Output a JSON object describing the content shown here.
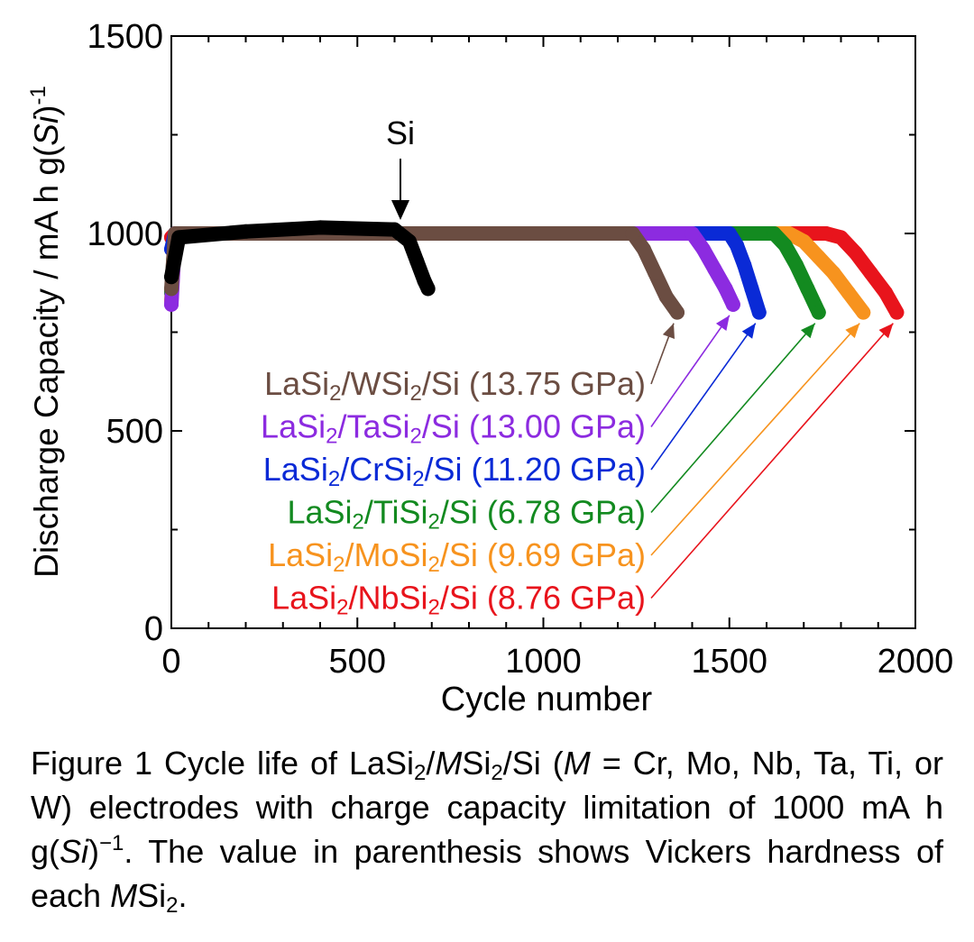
{
  "chart_data": {
    "type": "scatter",
    "title": "",
    "xlabel": "Cycle number",
    "ylabel_parts": {
      "main": "Discharge Capacity / mA h g(",
      "italic": "Si",
      "close": ")",
      "sup": "-1"
    },
    "xlim": [
      0,
      2000
    ],
    "ylim": [
      0,
      1500
    ],
    "xticks": [
      0,
      500,
      1000,
      1500,
      2000
    ],
    "yticks": [
      0,
      500,
      1000,
      1500
    ],
    "xtick_labels": [
      "0",
      "500",
      "1000",
      "1500",
      "2000"
    ],
    "ytick_labels": [
      "0",
      "500",
      "1000",
      "1500"
    ],
    "annotation_si": {
      "label": "Si",
      "x": 610,
      "y": 1010
    },
    "series": [
      {
        "name": "LaSi2/NbSi2/Si",
        "parts": [
          "LaSi",
          "2",
          "/NbSi",
          "2",
          "/Si (8.76 GPa)"
        ],
        "color": "#e8141c",
        "points": [
          [
            0,
            990
          ],
          [
            10,
            1000
          ],
          [
            1760,
            1000
          ],
          [
            1800,
            990
          ],
          [
            1840,
            950
          ],
          [
            1880,
            900
          ],
          [
            1920,
            850
          ],
          [
            1950,
            800
          ]
        ]
      },
      {
        "name": "LaSi2/MoSi2/Si",
        "parts": [
          "LaSi",
          "2",
          "/MoSi",
          "2",
          "/Si (9.69 GPa)"
        ],
        "color": "#f7931e",
        "points": [
          [
            0,
            830
          ],
          [
            10,
            1000
          ],
          [
            1660,
            1000
          ],
          [
            1700,
            980
          ],
          [
            1740,
            940
          ],
          [
            1780,
            900
          ],
          [
            1820,
            850
          ],
          [
            1860,
            800
          ]
        ]
      },
      {
        "name": "LaSi2/TiSi2/Si",
        "parts": [
          "LaSi",
          "2",
          "/TiSi",
          "2",
          "/Si (6.78 GPa)"
        ],
        "color": "#138a20",
        "points": [
          [
            0,
            850
          ],
          [
            10,
            1000
          ],
          [
            1620,
            1000
          ],
          [
            1650,
            970
          ],
          [
            1680,
            920
          ],
          [
            1710,
            860
          ],
          [
            1740,
            800
          ]
        ]
      },
      {
        "name": "LaSi2/CrSi2/Si",
        "parts": [
          "LaSi",
          "2",
          "/CrSi",
          "2",
          "/Si (11.20 GPa)"
        ],
        "color": "#0a2ad6",
        "points": [
          [
            0,
            960
          ],
          [
            10,
            1000
          ],
          [
            1500,
            1000
          ],
          [
            1520,
            970
          ],
          [
            1540,
            920
          ],
          [
            1560,
            860
          ],
          [
            1580,
            800
          ]
        ]
      },
      {
        "name": "LaSi2/TaSi2/Si",
        "parts": [
          "LaSi",
          "2",
          "/TaSi",
          "2",
          "/Si (13.00 GPa)"
        ],
        "color": "#8c2be0",
        "points": [
          [
            0,
            820
          ],
          [
            10,
            1000
          ],
          [
            1400,
            1000
          ],
          [
            1430,
            960
          ],
          [
            1460,
            910
          ],
          [
            1490,
            860
          ],
          [
            1510,
            820
          ]
        ]
      },
      {
        "name": "LaSi2/WSi2/Si",
        "parts": [
          "LaSi",
          "2",
          "/WSi",
          "2",
          "/Si (13.75 GPa)"
        ],
        "color": "#6b4d42",
        "points": [
          [
            0,
            860
          ],
          [
            10,
            1000
          ],
          [
            1240,
            1000
          ],
          [
            1270,
            960
          ],
          [
            1300,
            900
          ],
          [
            1330,
            840
          ],
          [
            1360,
            800
          ]
        ]
      },
      {
        "name": "Si",
        "color": "#000000",
        "points": [
          [
            0,
            890
          ],
          [
            20,
            990
          ],
          [
            200,
            1005
          ],
          [
            400,
            1015
          ],
          [
            600,
            1010
          ],
          [
            640,
            980
          ],
          [
            660,
            930
          ],
          [
            680,
            880
          ],
          [
            690,
            860
          ]
        ]
      }
    ]
  },
  "caption": {
    "t1": "Figure 1 Cycle life of LaSi",
    "s1": "2",
    "t2": "/",
    "i1": "M",
    "t3": "Si",
    "s2": "2",
    "t4": "/Si (",
    "i2": "M",
    "t5": " = Cr, Mo, Nb, Ta, Ti, or W) electrodes with charge capacity limitation of 1000 mA h g(",
    "i3": "Si",
    "t6": ")",
    "sup1": "−1",
    "t7": ". The value in parenthesis shows Vickers hardness of each ",
    "i4": "M",
    "t8": "Si",
    "s3": "2",
    "t9": "."
  }
}
